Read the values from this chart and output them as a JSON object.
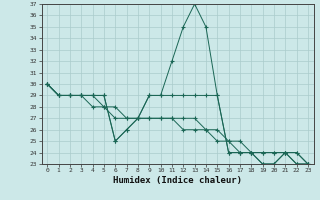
{
  "title": "",
  "xlabel": "Humidex (Indice chaleur)",
  "ylabel": "",
  "bg_color": "#cce8e8",
  "grid_color": "#aacccc",
  "line_color": "#1a6655",
  "xmin": 0,
  "xmax": 23,
  "ymin": 23,
  "ymax": 37,
  "series": [
    [
      30,
      29,
      29,
      29,
      29,
      29,
      25,
      26,
      27,
      29,
      29,
      32,
      35,
      37,
      35,
      29,
      24,
      24,
      24,
      23,
      23,
      24,
      23,
      23
    ],
    [
      30,
      29,
      29,
      29,
      29,
      29,
      25,
      26,
      27,
      29,
      29,
      29,
      29,
      29,
      29,
      29,
      24,
      24,
      24,
      23,
      23,
      24,
      23,
      23
    ],
    [
      30,
      29,
      29,
      29,
      29,
      28,
      27,
      27,
      27,
      27,
      27,
      27,
      27,
      27,
      26,
      26,
      25,
      25,
      24,
      24,
      24,
      24,
      24,
      23
    ],
    [
      30,
      29,
      29,
      29,
      28,
      28,
      28,
      27,
      27,
      27,
      27,
      27,
      26,
      26,
      26,
      25,
      25,
      24,
      24,
      24,
      24,
      24,
      24,
      23
    ]
  ],
  "x_values": [
    0,
    1,
    2,
    3,
    4,
    5,
    6,
    7,
    8,
    9,
    10,
    11,
    12,
    13,
    14,
    15,
    16,
    17,
    18,
    19,
    20,
    21,
    22,
    23
  ],
  "ytick_fontsize": 4.5,
  "xtick_fontsize": 4.5,
  "xlabel_fontsize": 6.5
}
